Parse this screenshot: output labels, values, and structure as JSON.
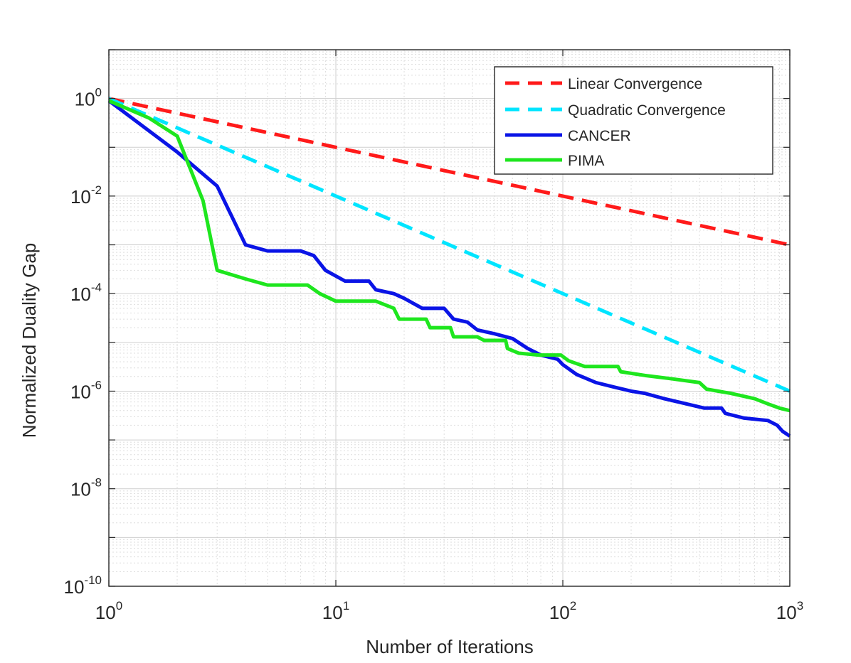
{
  "chart_data": {
    "type": "line",
    "title": "",
    "xlabel": "Number of Iterations",
    "ylabel": "Normalized Duality Gap",
    "xscale": "log",
    "yscale": "log",
    "xlim": [
      1,
      1000
    ],
    "ylim": [
      1e-10,
      10
    ],
    "grid": true,
    "minor_grid": true,
    "legend_position": "top-right",
    "x_ticks": [
      {
        "value": 1,
        "base": "10",
        "exp": "0"
      },
      {
        "value": 10,
        "base": "10",
        "exp": "1"
      },
      {
        "value": 100,
        "base": "10",
        "exp": "2"
      },
      {
        "value": 1000,
        "base": "10",
        "exp": "3"
      }
    ],
    "y_ticks": [
      {
        "value": 1,
        "base": "10",
        "exp": "0"
      },
      {
        "value": 0.01,
        "base": "10",
        "exp": "-2"
      },
      {
        "value": 0.0001,
        "base": "10",
        "exp": "-4"
      },
      {
        "value": 1e-06,
        "base": "10",
        "exp": "-6"
      },
      {
        "value": 1e-08,
        "base": "10",
        "exp": "-8"
      },
      {
        "value": 1e-10,
        "base": "10",
        "exp": "-10"
      }
    ],
    "series": [
      {
        "name": "Linear Convergence",
        "color": "#ff1a1a",
        "style": "dashed",
        "points": [
          [
            1,
            1
          ],
          [
            1000,
            0.001
          ]
        ]
      },
      {
        "name": "Quadratic Convergence",
        "color": "#00e5ff",
        "style": "dashed",
        "points": [
          [
            1,
            1
          ],
          [
            1000,
            1e-06
          ]
        ]
      },
      {
        "name": "CANCER",
        "color": "#0a14e6",
        "style": "solid",
        "points": [
          [
            1,
            0.9
          ],
          [
            2,
            0.08
          ],
          [
            3,
            0.016
          ],
          [
            4,
            0.001
          ],
          [
            5,
            0.00075
          ],
          [
            7,
            0.00075
          ],
          [
            8,
            0.0006
          ],
          [
            9,
            0.0003
          ],
          [
            11,
            0.00018
          ],
          [
            14,
            0.00018
          ],
          [
            15,
            0.00012
          ],
          [
            18,
            0.0001
          ],
          [
            20,
            8e-05
          ],
          [
            24,
            5e-05
          ],
          [
            30,
            5e-05
          ],
          [
            33,
            3e-05
          ],
          [
            38,
            2.6e-05
          ],
          [
            42,
            1.8e-05
          ],
          [
            50,
            1.5e-05
          ],
          [
            60,
            1.2e-05
          ],
          [
            70,
            7.5e-06
          ],
          [
            80,
            5.5e-06
          ],
          [
            95,
            4.5e-06
          ],
          [
            100,
            3.5e-06
          ],
          [
            115,
            2.2e-06
          ],
          [
            140,
            1.5e-06
          ],
          [
            170,
            1.2e-06
          ],
          [
            200,
            1e-06
          ],
          [
            230,
            9e-07
          ],
          [
            280,
            7e-07
          ],
          [
            350,
            5.5e-07
          ],
          [
            420,
            4.5e-07
          ],
          [
            500,
            4.5e-07
          ],
          [
            520,
            3.5e-07
          ],
          [
            630,
            2.8e-07
          ],
          [
            800,
            2.5e-07
          ],
          [
            880,
            2e-07
          ],
          [
            930,
            1.5e-07
          ],
          [
            1000,
            1.2e-07
          ]
        ]
      },
      {
        "name": "PIMA",
        "color": "#1ee61e",
        "style": "solid",
        "points": [
          [
            1,
            0.9
          ],
          [
            1.5,
            0.4
          ],
          [
            2,
            0.17
          ],
          [
            2.6,
            0.008
          ],
          [
            3,
            0.0003
          ],
          [
            4,
            0.0002
          ],
          [
            5,
            0.00015
          ],
          [
            7.5,
            0.00015
          ],
          [
            8.5,
            0.0001
          ],
          [
            10,
            7e-05
          ],
          [
            15,
            7e-05
          ],
          [
            18,
            5e-05
          ],
          [
            19,
            3e-05
          ],
          [
            25,
            3e-05
          ],
          [
            26,
            2e-05
          ],
          [
            32,
            2e-05
          ],
          [
            33,
            1.3e-05
          ],
          [
            42,
            1.3e-05
          ],
          [
            45,
            1.1e-05
          ],
          [
            56,
            1.1e-05
          ],
          [
            57,
            7.5e-06
          ],
          [
            64,
            6e-06
          ],
          [
            78,
            5.5e-06
          ],
          [
            98,
            5.5e-06
          ],
          [
            106,
            4.2e-06
          ],
          [
            125,
            3.2e-06
          ],
          [
            175,
            3.2e-06
          ],
          [
            180,
            2.5e-06
          ],
          [
            230,
            2.1e-06
          ],
          [
            300,
            1.8e-06
          ],
          [
            400,
            1.5e-06
          ],
          [
            430,
            1.1e-06
          ],
          [
            550,
            9e-07
          ],
          [
            700,
            7e-07
          ],
          [
            800,
            5.5e-07
          ],
          [
            900,
            4.5e-07
          ],
          [
            1000,
            4e-07
          ]
        ]
      }
    ]
  }
}
